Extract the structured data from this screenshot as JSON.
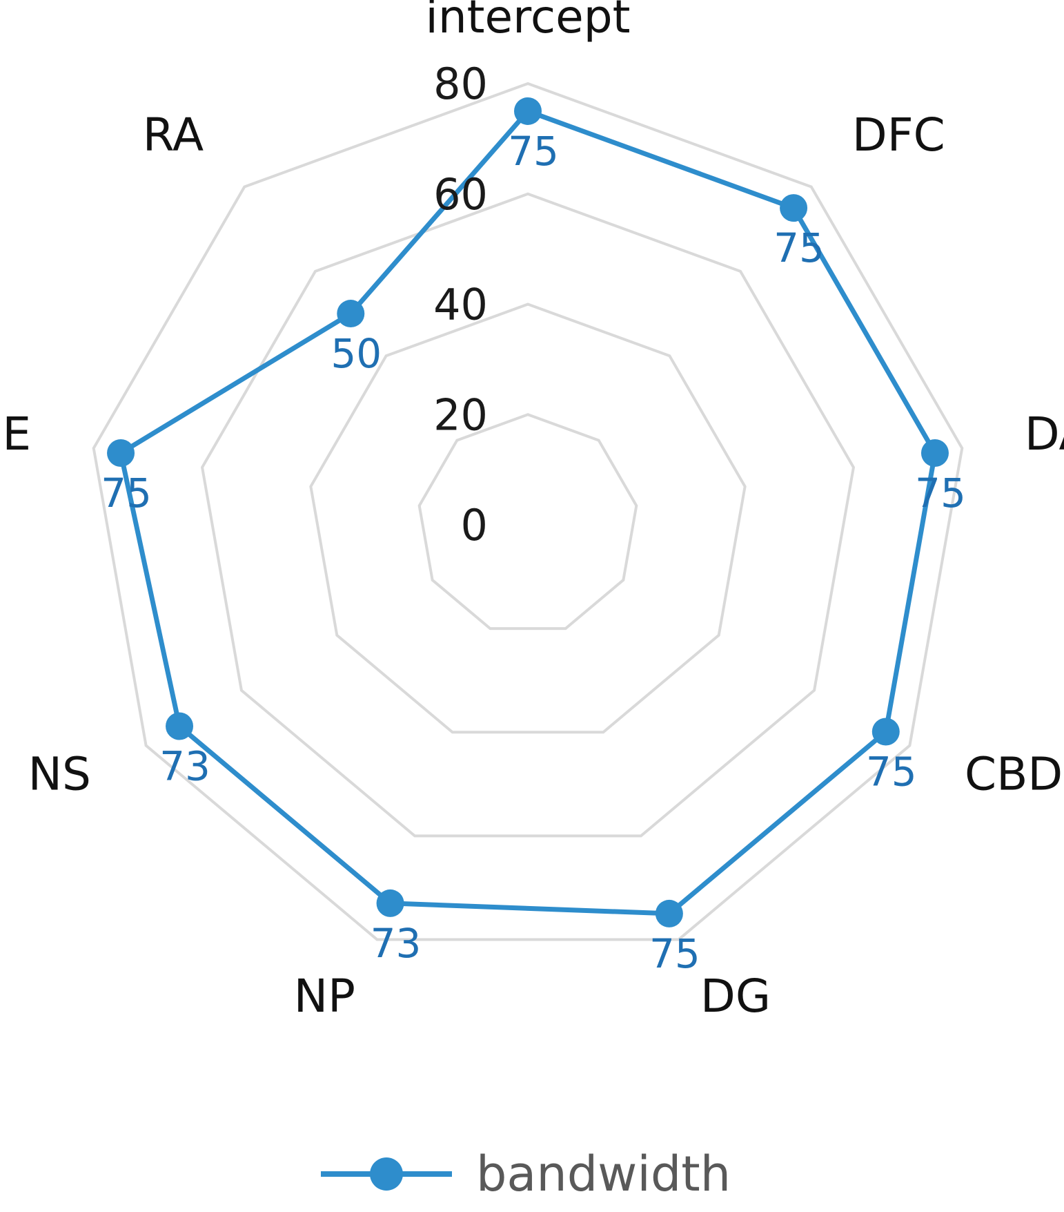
{
  "chart_data": {
    "type": "radar",
    "categories": [
      "intercept",
      "DFC",
      "DA",
      "CBD",
      "DG",
      "NP",
      "NS",
      "DE",
      "RA"
    ],
    "series": [
      {
        "name": "bandwidth",
        "values": [
          75,
          75,
          75,
          75,
          75,
          73,
          73,
          75,
          50
        ],
        "color": "#2E8DCC"
      }
    ],
    "r_ticks": [
      0,
      20,
      40,
      60,
      80
    ],
    "rlim": [
      0,
      80
    ],
    "grid": true,
    "legend_position": "bottom",
    "colors": {
      "grid": "#d9d9d9",
      "series": "#2E8DCC",
      "text": "#111111",
      "data_label": "#1F6FB2",
      "legend_text": "#595959"
    }
  }
}
